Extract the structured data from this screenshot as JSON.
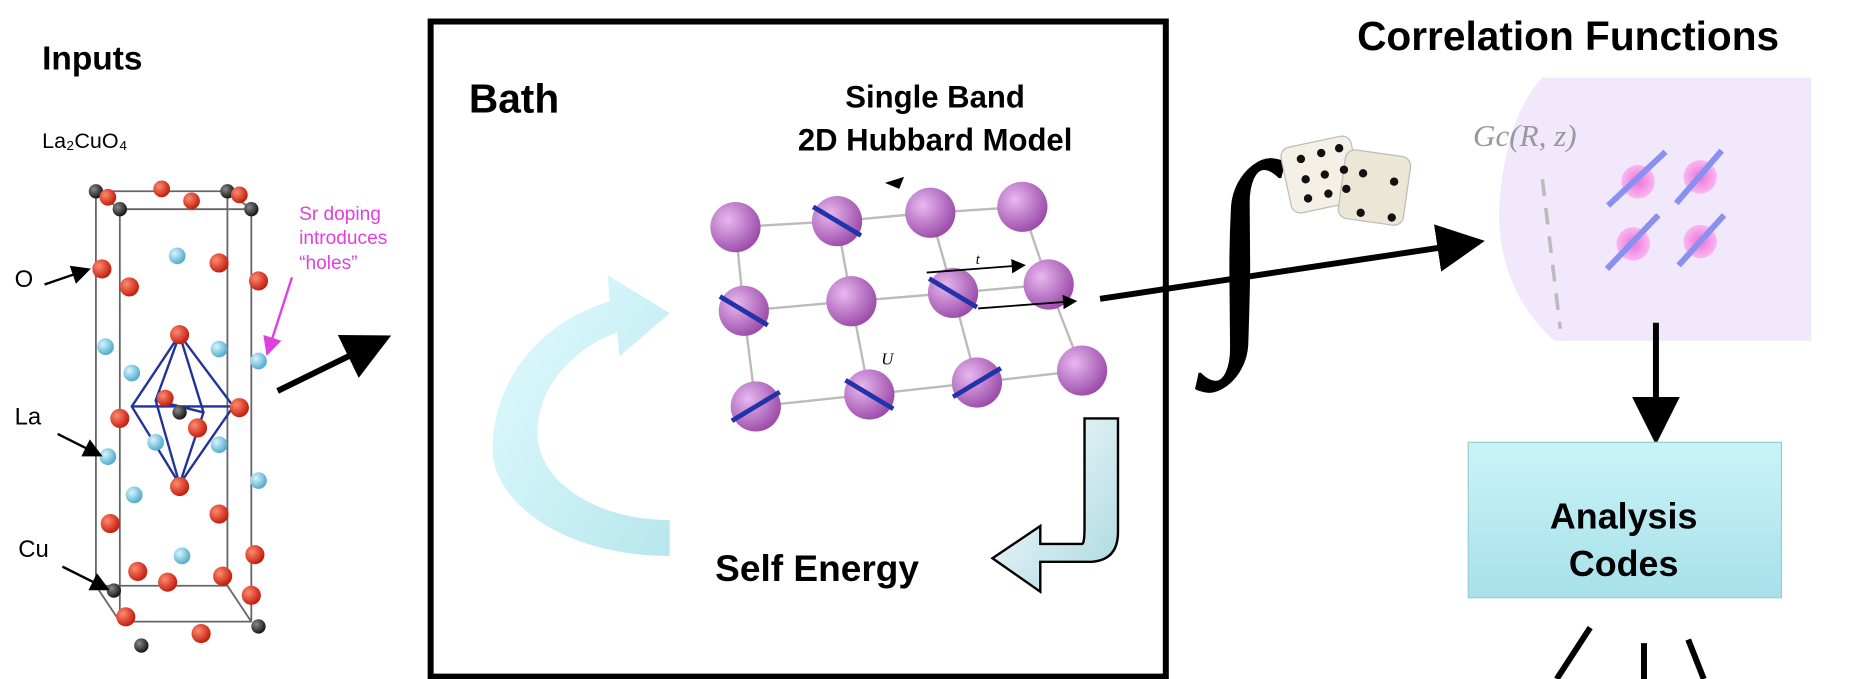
{
  "inputs": {
    "title": "Inputs",
    "formula": "La₂CuO₄",
    "labels": [
      "O",
      "La",
      "Cu"
    ],
    "annotation": [
      "Sr doping",
      "introduces",
      "“holes”"
    ]
  },
  "bath": {
    "title": "Bath",
    "model": [
      "Single Band",
      "2D Hubbard Model"
    ],
    "hopping": "t",
    "interaction": "U",
    "output": "Self Energy"
  },
  "correlation": {
    "title": "Correlation Functions",
    "symbol": "Gc(R, z)"
  },
  "analysis": {
    "label": [
      "Analysis",
      "Codes"
    ]
  }
}
